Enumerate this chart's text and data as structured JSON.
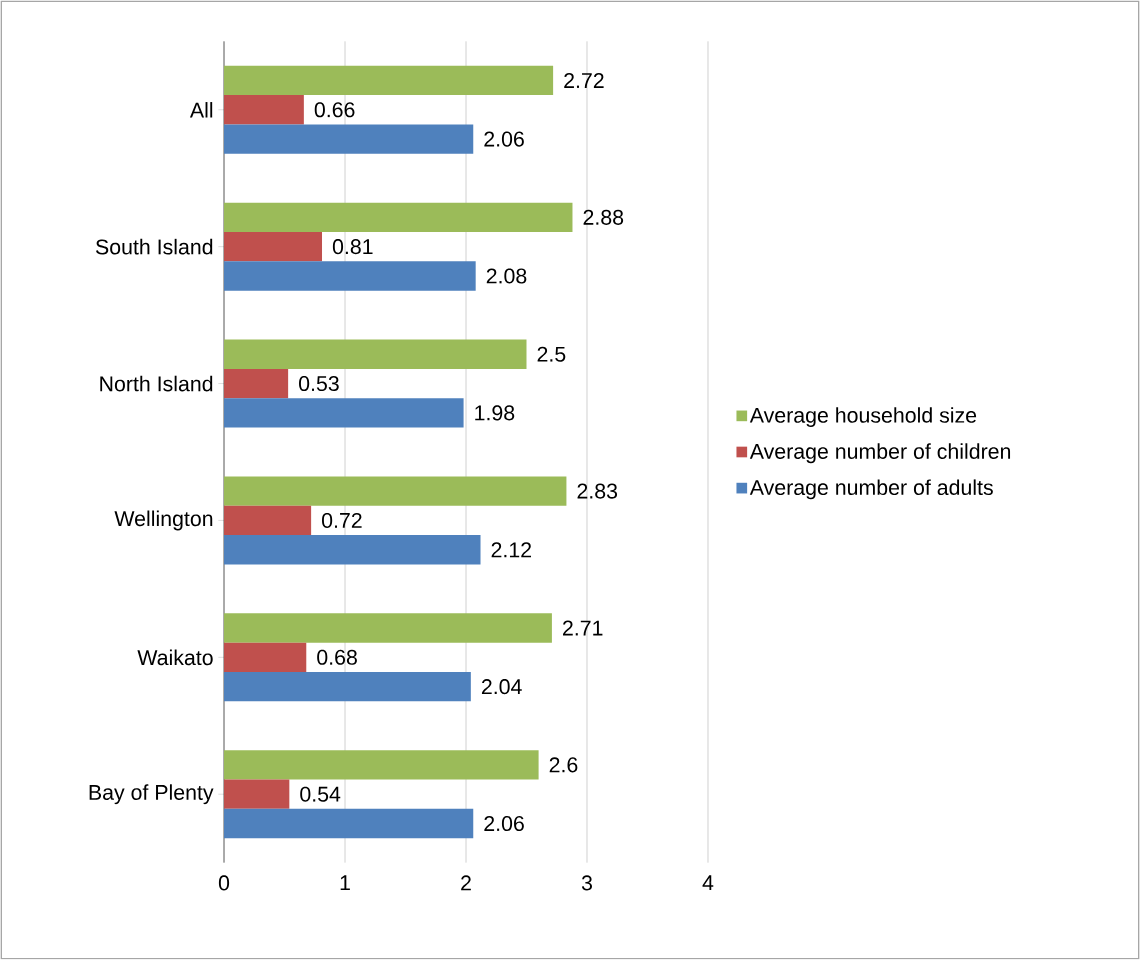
{
  "chart_data": {
    "type": "bar",
    "orientation": "horizontal",
    "categories": [
      "All",
      "South Island",
      "North Island",
      "Wellington",
      "Waikato",
      "Bay of Plenty"
    ],
    "series": [
      {
        "name": "Average household size",
        "color": "#9bbb59",
        "values": [
          2.72,
          2.88,
          2.5,
          2.83,
          2.71,
          2.6
        ]
      },
      {
        "name": "Average number of children",
        "color": "#c0504d",
        "values": [
          0.66,
          0.81,
          0.53,
          0.72,
          0.68,
          0.54
        ]
      },
      {
        "name": "Average number of adults",
        "color": "#4f81bd",
        "values": [
          2.06,
          2.08,
          1.98,
          2.12,
          2.04,
          2.06
        ]
      }
    ],
    "xlim": [
      0,
      4
    ],
    "xticks": [
      0,
      1,
      2,
      3,
      4
    ],
    "grid": "x",
    "legend": "right",
    "data_labels": true
  }
}
